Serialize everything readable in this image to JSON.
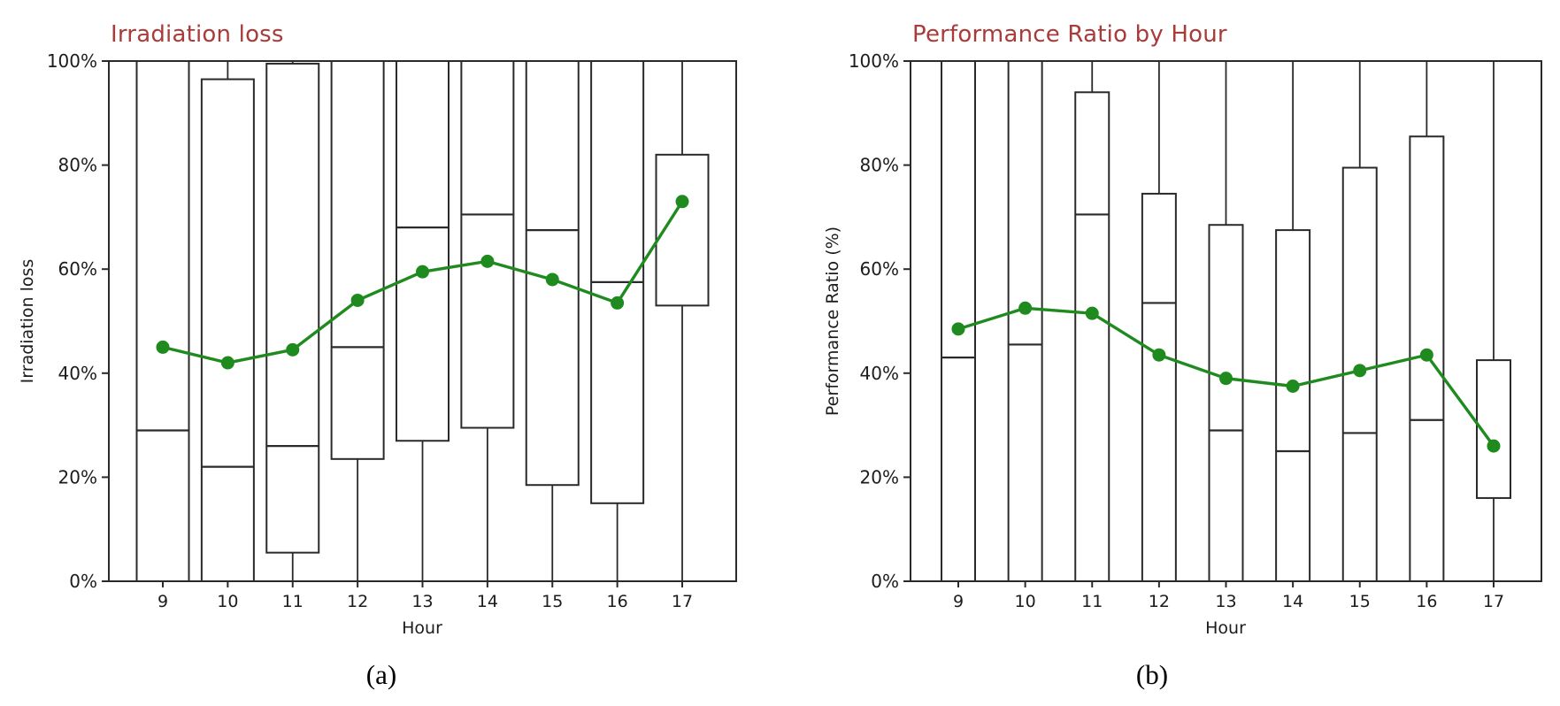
{
  "colors": {
    "title": "#A93B3B",
    "axis": "#2A2A2A",
    "mean_line": "#1F8B1F",
    "background": "#FFFFFF"
  },
  "chart_data": [
    {
      "type": "box",
      "title": "Irradiation loss",
      "xlabel": "Hour",
      "ylabel": "Irradiation loss",
      "caption": "(a)",
      "ylim": [
        0,
        100
      ],
      "grid": false,
      "legend": "none",
      "yticks": [
        {
          "value": 0,
          "label": "0%"
        },
        {
          "value": 20,
          "label": "20%"
        },
        {
          "value": 40,
          "label": "40%"
        },
        {
          "value": 60,
          "label": "60%"
        },
        {
          "value": 80,
          "label": "80%"
        },
        {
          "value": 100,
          "label": "100%"
        }
      ],
      "hours": [
        9,
        10,
        11,
        12,
        13,
        14,
        15,
        16,
        17
      ],
      "boxes": [
        {
          "hour": 9,
          "q1": 0,
          "median": 29,
          "q3": 100,
          "whisker_low": 0,
          "whisker_high": 100
        },
        {
          "hour": 10,
          "q1": 0,
          "median": 22,
          "q3": 96.5,
          "whisker_low": 0,
          "whisker_high": 100
        },
        {
          "hour": 11,
          "q1": 5.5,
          "median": 26,
          "q3": 99.5,
          "whisker_low": 0,
          "whisker_high": 100
        },
        {
          "hour": 12,
          "q1": 23.5,
          "median": 45,
          "q3": 100,
          "whisker_low": 0,
          "whisker_high": 100
        },
        {
          "hour": 13,
          "q1": 27,
          "median": 68,
          "q3": 100,
          "whisker_low": 0,
          "whisker_high": 100
        },
        {
          "hour": 14,
          "q1": 29.5,
          "median": 70.5,
          "q3": 100,
          "whisker_low": 0,
          "whisker_high": 100
        },
        {
          "hour": 15,
          "q1": 18.5,
          "median": 67.5,
          "q3": 100,
          "whisker_low": 0,
          "whisker_high": 100
        },
        {
          "hour": 16,
          "q1": 15,
          "median": 57.5,
          "q3": 100,
          "whisker_low": 0,
          "whisker_high": 100
        },
        {
          "hour": 17,
          "q1": 53,
          "median": null,
          "q3": 82,
          "whisker_low": 0,
          "whisker_high": 100
        }
      ],
      "mean_series": {
        "name": "hourly mean",
        "values": [
          45,
          42,
          44.5,
          54,
          59.5,
          61.5,
          58,
          53.5,
          73
        ]
      }
    },
    {
      "type": "box",
      "title": "Performance Ratio by Hour",
      "xlabel": "Hour",
      "ylabel": "Performance Ratio (%)",
      "caption": "(b)",
      "ylim": [
        0,
        100
      ],
      "grid": false,
      "legend": "none",
      "yticks": [
        {
          "value": 0,
          "label": "0%"
        },
        {
          "value": 20,
          "label": "20%"
        },
        {
          "value": 40,
          "label": "40%"
        },
        {
          "value": 60,
          "label": "60%"
        },
        {
          "value": 80,
          "label": "80%"
        },
        {
          "value": 100,
          "label": "100%"
        }
      ],
      "hours": [
        9,
        10,
        11,
        12,
        13,
        14,
        15,
        16,
        17
      ],
      "boxes": [
        {
          "hour": 9,
          "q1": 0,
          "median": 43,
          "q3": 100,
          "whisker_low": 0,
          "whisker_high": 100
        },
        {
          "hour": 10,
          "q1": 0,
          "median": 45.5,
          "q3": 100,
          "whisker_low": 0,
          "whisker_high": 100
        },
        {
          "hour": 11,
          "q1": 0,
          "median": 70.5,
          "q3": 94,
          "whisker_low": 0,
          "whisker_high": 100
        },
        {
          "hour": 12,
          "q1": 0,
          "median": 53.5,
          "q3": 74.5,
          "whisker_low": 0,
          "whisker_high": 100
        },
        {
          "hour": 13,
          "q1": 0,
          "median": 29,
          "q3": 68.5,
          "whisker_low": 0,
          "whisker_high": 100
        },
        {
          "hour": 14,
          "q1": 0,
          "median": 25,
          "q3": 67.5,
          "whisker_low": 0,
          "whisker_high": 100
        },
        {
          "hour": 15,
          "q1": 0,
          "median": 28.5,
          "q3": 79.5,
          "whisker_low": 0,
          "whisker_high": 100
        },
        {
          "hour": 16,
          "q1": 0,
          "median": 31,
          "q3": 85.5,
          "whisker_low": 0,
          "whisker_high": 100
        },
        {
          "hour": 17,
          "q1": 16,
          "median": null,
          "q3": 42.5,
          "whisker_low": 0,
          "whisker_high": 100
        }
      ],
      "mean_series": {
        "name": "hourly mean",
        "values": [
          48.5,
          52.5,
          51.5,
          43.5,
          39,
          37.5,
          40.5,
          43.5,
          26
        ]
      }
    }
  ]
}
